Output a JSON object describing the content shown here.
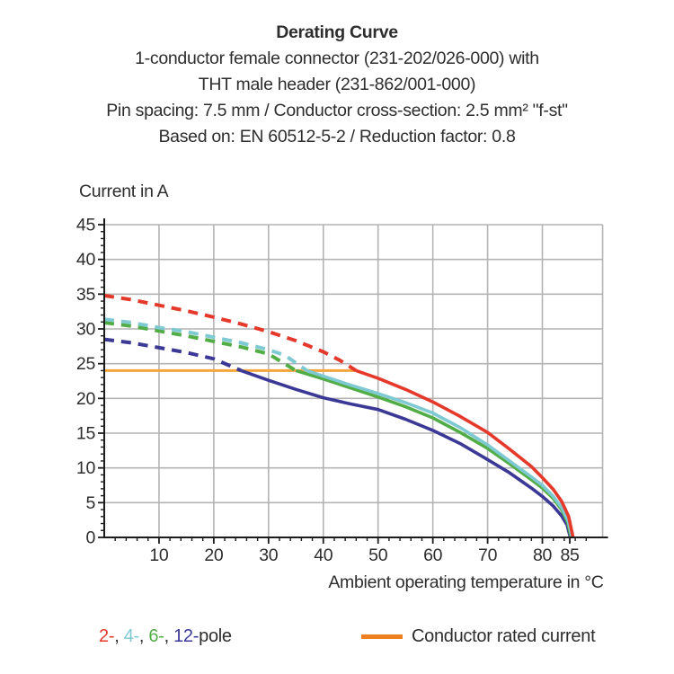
{
  "title": {
    "line1": "Derating Curve",
    "line2": "1-conductor female connector (231-202/026-000) with",
    "line3": "THT male header (231-862/001-000)",
    "line4": "Pin spacing: 7.5 mm / Conductor cross-section: 2.5 mm² \"f-st\"",
    "line5": "Based on: EN 60512-5-2 / Reduction factor: 0.8"
  },
  "chart_data": {
    "type": "line",
    "title": "Derating Curve",
    "xlabel": "Ambient operating temperature in °C",
    "ylabel": "Current in A",
    "xlim": [
      0,
      91
    ],
    "ylim": [
      0,
      45
    ],
    "x_major_ticks": [
      10,
      20,
      30,
      40,
      50,
      60,
      70,
      80,
      85
    ],
    "x_minor_tick_step": 2,
    "y_major_ticks": [
      0,
      5,
      10,
      15,
      20,
      25,
      30,
      35,
      40,
      45
    ],
    "y_minor_tick_step": 1,
    "grid": true,
    "rated_current_A": 24,
    "series": [
      {
        "name": "2-pole",
        "color": "#e5392b",
        "dashed_points": [
          [
            0,
            34.8
          ],
          [
            5,
            34.2
          ],
          [
            10,
            33.4
          ],
          [
            15,
            32.6
          ],
          [
            20,
            31.7
          ],
          [
            25,
            30.7
          ],
          [
            30,
            29.6
          ],
          [
            35,
            28.3
          ],
          [
            40,
            26.7
          ],
          [
            43,
            25.5
          ],
          [
            46,
            24
          ]
        ],
        "solid_points": [
          [
            46,
            24
          ],
          [
            50,
            22.9
          ],
          [
            55,
            21.3
          ],
          [
            60,
            19.5
          ],
          [
            65,
            17.4
          ],
          [
            70,
            15.1
          ],
          [
            74,
            12.7
          ],
          [
            78,
            10.2
          ],
          [
            80,
            8.6
          ],
          [
            82,
            6.9
          ],
          [
            83.5,
            5.2
          ],
          [
            84.8,
            3.0
          ],
          [
            85.6,
            0
          ]
        ]
      },
      {
        "name": "4-pole",
        "color": "#7fc9d2",
        "dashed_points": [
          [
            0,
            31.4
          ],
          [
            5,
            30.9
          ],
          [
            10,
            30.2
          ],
          [
            15,
            29.6
          ],
          [
            20,
            28.8
          ],
          [
            25,
            28.0
          ],
          [
            30,
            27.0
          ],
          [
            33,
            26.2
          ],
          [
            37,
            24
          ]
        ],
        "solid_points": [
          [
            37,
            24
          ],
          [
            40,
            23.2
          ],
          [
            45,
            21.9
          ],
          [
            50,
            20.7
          ],
          [
            55,
            19.4
          ],
          [
            60,
            17.9
          ],
          [
            65,
            15.8
          ],
          [
            70,
            13.3
          ],
          [
            74,
            11.0
          ],
          [
            78,
            8.7
          ],
          [
            80,
            7.5
          ],
          [
            82,
            5.9
          ],
          [
            83.5,
            4.3
          ],
          [
            84.7,
            2.4
          ],
          [
            85.4,
            0
          ]
        ]
      },
      {
        "name": "6-pole",
        "color": "#52ad47",
        "dashed_points": [
          [
            0,
            30.9
          ],
          [
            5,
            30.4
          ],
          [
            10,
            29.7
          ],
          [
            15,
            29.0
          ],
          [
            20,
            28.2
          ],
          [
            25,
            27.4
          ],
          [
            30,
            26.4
          ],
          [
            35,
            24
          ]
        ],
        "solid_points": [
          [
            35,
            24
          ],
          [
            40,
            22.8
          ],
          [
            45,
            21.5
          ],
          [
            50,
            20.2
          ],
          [
            55,
            18.8
          ],
          [
            60,
            17.2
          ],
          [
            65,
            15.1
          ],
          [
            70,
            12.8
          ],
          [
            74,
            10.6
          ],
          [
            78,
            8.3
          ],
          [
            80,
            7.1
          ],
          [
            82,
            5.6
          ],
          [
            83.5,
            4.0
          ],
          [
            84.6,
            2.2
          ],
          [
            85.25,
            0
          ]
        ]
      },
      {
        "name": "12-pole",
        "color": "#3b3896",
        "dashed_points": [
          [
            0,
            28.5
          ],
          [
            5,
            28.0
          ],
          [
            10,
            27.3
          ],
          [
            15,
            26.6
          ],
          [
            20,
            25.7
          ],
          [
            25,
            24
          ]
        ],
        "solid_points": [
          [
            25,
            24
          ],
          [
            30,
            22.6
          ],
          [
            35,
            21.3
          ],
          [
            40,
            20.1
          ],
          [
            45,
            19.2
          ],
          [
            50,
            18.4
          ],
          [
            55,
            17.0
          ],
          [
            60,
            15.4
          ],
          [
            65,
            13.5
          ],
          [
            70,
            11.2
          ],
          [
            74,
            9.3
          ],
          [
            78,
            7.1
          ],
          [
            80,
            5.9
          ],
          [
            82,
            4.5
          ],
          [
            83.5,
            3.1
          ],
          [
            84.5,
            1.8
          ],
          [
            85.1,
            0
          ]
        ]
      },
      {
        "name": "Conductor rated current",
        "color": "#f5a53c",
        "solid_points": [
          [
            0,
            24
          ],
          [
            46,
            24
          ]
        ]
      }
    ]
  },
  "legend": {
    "poles": [
      {
        "label": "2-",
        "color": "#e5392b"
      },
      {
        "label": "4-",
        "color": "#7fc9d2"
      },
      {
        "label": "6-",
        "color": "#52ad47"
      },
      {
        "label": "12-",
        "color": "#3b3896"
      }
    ],
    "separator": ", ",
    "pole_suffix": "pole",
    "rated_label": "Conductor rated current",
    "rated_swatch_color": "#ee7e20"
  },
  "colors": {
    "grid": "#b4b4b4",
    "axis": "#1c1c1c",
    "text": "#2d2d2d"
  }
}
